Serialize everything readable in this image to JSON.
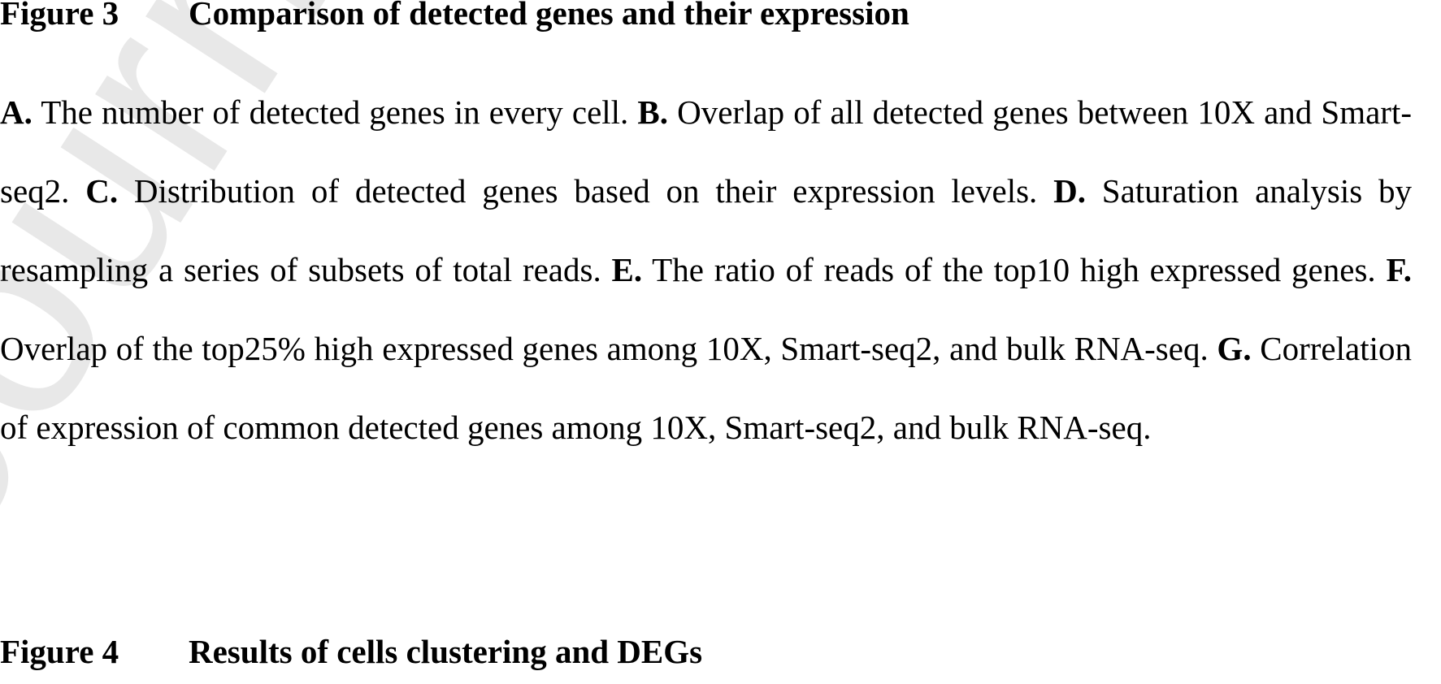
{
  "watermark": "Journal Pre-proof",
  "figure3": {
    "label": "Figure 3",
    "title": "Comparison of detected genes and their expression",
    "panels": [
      {
        "label": "A.",
        "text": " The number of detected genes in every cell. "
      },
      {
        "label": "B.",
        "text": " Overlap of all detected genes between 10X and Smart-seq2. "
      },
      {
        "label": "C.",
        "text": " Distribution of detected genes based on their expression levels. "
      },
      {
        "label": "D.",
        "text": " Saturation analysis by resampling a series of subsets of total reads. "
      },
      {
        "label": "E.",
        "text": " The ratio of reads of the top10 high expressed genes. "
      },
      {
        "label": "F.",
        "text": " Overlap of the top25% high expressed genes among 10X, Smart-seq2, and bulk RNA-seq. "
      },
      {
        "label": "G.",
        "text": " Correlation of expression of common detected genes among 10X, Smart-seq2, and bulk RNA-seq."
      }
    ]
  },
  "figure4": {
    "label": "Figure 4",
    "title": "Results of cells clustering and DEGs"
  }
}
